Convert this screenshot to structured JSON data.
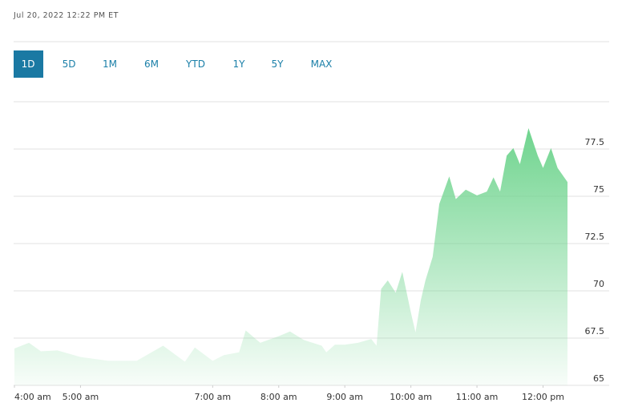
{
  "header": {
    "timestamp": "Jul 20, 2022 12:22 PM ET"
  },
  "range_buttons": [
    "1D",
    "5D",
    "1M",
    "6M",
    "YTD",
    "1Y",
    "5Y",
    "MAX"
  ],
  "chart_data": {
    "type": "area",
    "color": "#6fd48e",
    "x": [
      4.0,
      4.22,
      4.4,
      4.65,
      5.0,
      5.42,
      5.85,
      6.25,
      6.58,
      6.73,
      7.0,
      7.17,
      7.4,
      7.5,
      7.72,
      8.0,
      8.17,
      8.38,
      8.65,
      8.72,
      8.85,
      9.0,
      9.2,
      9.4,
      9.48,
      9.55,
      9.65,
      9.77,
      9.87,
      10.0,
      10.07,
      10.15,
      10.22,
      10.33,
      10.43,
      10.58,
      10.68,
      10.83,
      11.0,
      11.15,
      11.25,
      11.35,
      11.45,
      11.55,
      11.65,
      11.78,
      11.92,
      12.0,
      12.12,
      12.22,
      12.37
    ],
    "values": [
      66.95,
      67.25,
      66.8,
      66.85,
      66.5,
      66.3,
      66.3,
      67.1,
      66.25,
      67.0,
      66.3,
      66.6,
      66.75,
      67.9,
      67.25,
      67.6,
      67.85,
      67.4,
      67.1,
      66.75,
      67.15,
      67.15,
      67.25,
      67.45,
      67.1,
      70.1,
      70.55,
      69.9,
      71.0,
      68.85,
      67.8,
      69.5,
      70.55,
      71.8,
      74.6,
      76.05,
      74.85,
      75.35,
      75.05,
      75.25,
      76.0,
      75.25,
      77.15,
      77.55,
      76.7,
      78.6,
      77.15,
      76.5,
      77.55,
      76.5,
      75.75
    ],
    "xlim": [
      4,
      12.37
    ],
    "xticks": [
      {
        "value": 4,
        "label": "4:00 am"
      },
      {
        "value": 5,
        "label": "5:00 am"
      },
      {
        "value": 7,
        "label": "7:00 am"
      },
      {
        "value": 8,
        "label": "8:00 am"
      },
      {
        "value": 9,
        "label": "9:00 am"
      },
      {
        "value": 10,
        "label": "10:00 am"
      },
      {
        "value": 11,
        "label": "11:00 am"
      },
      {
        "value": 12,
        "label": "12:00 pm"
      }
    ],
    "ylim": [
      65,
      80
    ],
    "yticks": [
      65,
      67.5,
      70,
      72.5,
      75,
      77.5
    ],
    "grid": true
  }
}
